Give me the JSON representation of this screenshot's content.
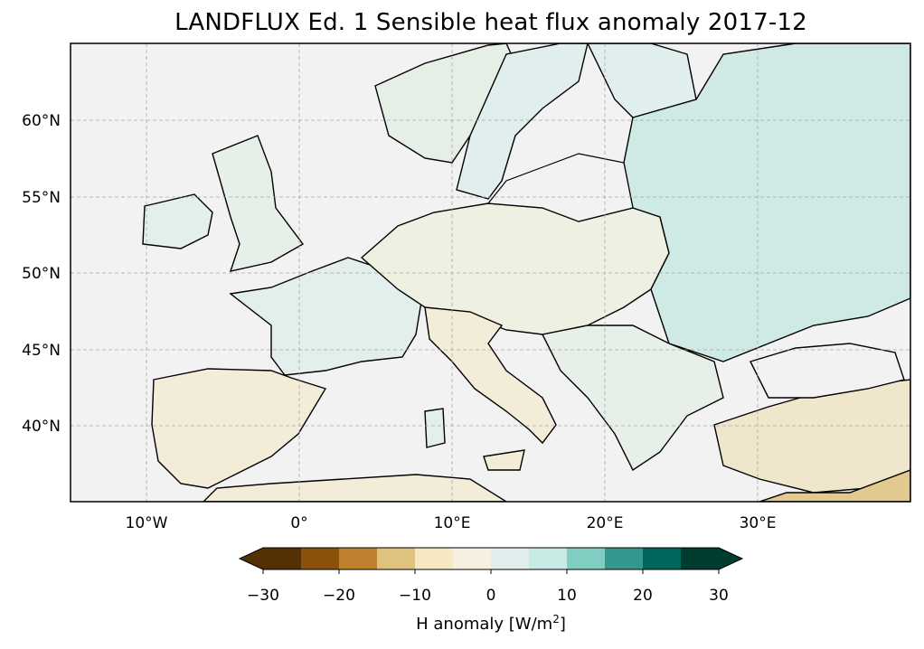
{
  "title": "LANDFLUX Ed. 1 Sensible heat flux anomaly 2017-12",
  "map": {
    "lon_range": [
      -15,
      40
    ],
    "lat_range": [
      35,
      65
    ],
    "x_ticks": [
      "10°W",
      "0°",
      "10°E",
      "20°E",
      "30°E"
    ],
    "y_ticks": [
      "60°N",
      "55°N",
      "50°N",
      "45°N",
      "40°N"
    ],
    "ocean_color": "#f2f2f2",
    "grid": true
  },
  "colorbar": {
    "label_prefix": "H anomaly [W/m",
    "label_sup": "2",
    "label_suffix": "]",
    "ticks": [
      "−30",
      "−20",
      "−10",
      "0",
      "10",
      "20",
      "30"
    ],
    "colors": [
      "#543005",
      "#8c510a",
      "#bf812d",
      "#dfc27d",
      "#f6e8c3",
      "#f5f0e0",
      "#e0efed",
      "#c7eae5",
      "#80cdc1",
      "#35978f",
      "#01665e",
      "#003c30"
    ],
    "extend": "both"
  }
}
